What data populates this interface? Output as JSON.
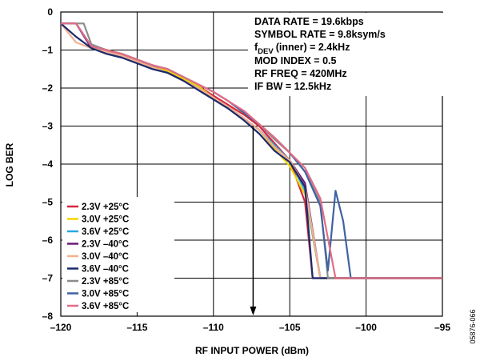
{
  "chart_data": {
    "type": "line",
    "title": "",
    "xlabel": "RF INPUT POWER (dBm)",
    "ylabel": "LOG BER",
    "xlim": [
      -120,
      -95
    ],
    "ylim": [
      -8,
      0
    ],
    "xticks": [
      -120,
      -115,
      -110,
      -105,
      -100,
      -95
    ],
    "xtick_labels": [
      "–120",
      "–115",
      "–110",
      "–105",
      "–100",
      "–95"
    ],
    "yticks": [
      0,
      -1,
      -2,
      -3,
      -4,
      -5,
      -6,
      -7,
      -8
    ],
    "ytick_labels": [
      "0",
      "–1",
      "–2",
      "–3",
      "–4",
      "–5",
      "–6",
      "–7",
      "–8"
    ],
    "grid": true,
    "legend_position": "bottom-left",
    "annotations": {
      "lines": [
        "DATA RATE = 19.6kbps",
        "SYMBOL RATE = 9.8ksym/s",
        "(inner) = 2.4kHz",
        "MOD INDEX = 0.5",
        "RF FREQ = 420MHz",
        "IF BW = 12.5kHz"
      ],
      "fdev_symbol": "f",
      "fdev_subscript": "DEV",
      "arrow_x": -107.4,
      "arrow_from_y": -3,
      "arrow_to_y": -8
    },
    "figure_id": "05876-066",
    "series": [
      {
        "name": "2.3V +25°C",
        "color": "#d7263d",
        "x": [
          -120,
          -119,
          -118,
          -117,
          -116,
          -115,
          -114,
          -113,
          -112,
          -111,
          -110,
          -109,
          -108,
          -107,
          -106,
          -105,
          -104,
          -103.5,
          -95
        ],
        "y": [
          -0.3,
          -0.3,
          -0.9,
          -1.0,
          -1.1,
          -1.25,
          -1.4,
          -1.55,
          -1.75,
          -1.95,
          -2.2,
          -2.45,
          -2.7,
          -3.0,
          -3.45,
          -3.9,
          -5.0,
          -7.0,
          -7.0
        ]
      },
      {
        "name": "3.0V +25°C",
        "color": "#f2d500",
        "x": [
          -120,
          -119,
          -118,
          -117,
          -116,
          -115,
          -114,
          -113,
          -112,
          -111,
          -110,
          -109,
          -108,
          -107,
          -106,
          -105,
          -104,
          -103,
          -95
        ],
        "y": [
          -0.3,
          -0.3,
          -0.9,
          -1.0,
          -1.1,
          -1.25,
          -1.4,
          -1.55,
          -1.75,
          -1.95,
          -2.25,
          -2.5,
          -2.8,
          -3.1,
          -3.6,
          -4.05,
          -4.8,
          -7.0,
          -7.0
        ]
      },
      {
        "name": "3.6V +25°C",
        "color": "#29a8e0",
        "x": [
          -120,
          -119,
          -118,
          -117,
          -116,
          -115,
          -114,
          -113,
          -112,
          -111,
          -110,
          -109,
          -108,
          -107,
          -106,
          -105,
          -104,
          -103,
          -95
        ],
        "y": [
          -0.3,
          -0.3,
          -0.95,
          -1.05,
          -1.15,
          -1.3,
          -1.45,
          -1.6,
          -1.8,
          -2.0,
          -2.25,
          -2.5,
          -2.8,
          -3.1,
          -3.5,
          -3.9,
          -4.7,
          -7.0,
          -7.0
        ]
      },
      {
        "name": "2.3V –40°C",
        "color": "#6a1b7a",
        "x": [
          -120,
          -119,
          -118,
          -117,
          -116,
          -115,
          -114,
          -113,
          -112,
          -111,
          -110,
          -109,
          -108,
          -107,
          -106,
          -105,
          -104,
          -103,
          -95
        ],
        "y": [
          -0.3,
          -0.3,
          -0.95,
          -1.05,
          -1.15,
          -1.3,
          -1.45,
          -1.6,
          -1.8,
          -2.0,
          -2.25,
          -2.5,
          -2.8,
          -3.1,
          -3.55,
          -3.9,
          -4.5,
          -7.0,
          -7.0
        ]
      },
      {
        "name": "3.0V –40°C",
        "color": "#f4b18e",
        "x": [
          -120,
          -119,
          -118,
          -117,
          -116,
          -115,
          -114,
          -113,
          -112,
          -111,
          -110,
          -109,
          -108,
          -107,
          -106,
          -105,
          -104,
          -103,
          -95
        ],
        "y": [
          -0.3,
          -0.8,
          -0.95,
          -1.05,
          -1.15,
          -1.3,
          -1.45,
          -1.6,
          -1.8,
          -2.0,
          -2.25,
          -2.5,
          -2.8,
          -3.1,
          -3.55,
          -3.9,
          -4.6,
          -7.0,
          -7.0
        ]
      },
      {
        "name": "3.6V –40°C",
        "color": "#1b2a6b",
        "x": [
          -120,
          -119,
          -118,
          -117,
          -116,
          -115,
          -114,
          -113,
          -112,
          -111,
          -110,
          -109,
          -108,
          -107,
          -106,
          -105,
          -104,
          -103.5,
          -95
        ],
        "y": [
          -0.3,
          -0.65,
          -0.95,
          -1.1,
          -1.2,
          -1.35,
          -1.5,
          -1.6,
          -1.8,
          -2.05,
          -2.3,
          -2.55,
          -2.85,
          -3.2,
          -3.65,
          -3.95,
          -4.6,
          -7.0,
          -7.0
        ]
      },
      {
        "name": "2.3V +85°C",
        "color": "#8c8c8c",
        "x": [
          -120,
          -119,
          -118.5,
          -118,
          -117,
          -116,
          -115,
          -114,
          -113,
          -112,
          -111,
          -110,
          -109,
          -108,
          -107,
          -106,
          -105,
          -104,
          -103,
          -102.5,
          -95
        ],
        "y": [
          -0.3,
          -0.3,
          -0.3,
          -0.85,
          -1.0,
          -1.1,
          -1.25,
          -1.4,
          -1.5,
          -1.7,
          -1.9,
          -2.1,
          -2.35,
          -2.65,
          -2.95,
          -3.35,
          -3.7,
          -4.2,
          -5.0,
          -7.0,
          -7.0
        ]
      },
      {
        "name": "3.0V +85°C",
        "color": "#3f63a1",
        "x": [
          -120,
          -119,
          -118,
          -117,
          -116,
          -115,
          -114,
          -113,
          -112,
          -111,
          -110,
          -109,
          -108,
          -107,
          -106,
          -105,
          -104,
          -103,
          -102.5,
          -102,
          -101.5,
          -101,
          -95
        ],
        "y": [
          -0.3,
          -0.3,
          -0.9,
          -1.0,
          -1.1,
          -1.25,
          -1.4,
          -1.5,
          -1.7,
          -1.9,
          -2.1,
          -2.35,
          -2.65,
          -2.95,
          -3.3,
          -3.7,
          -4.2,
          -5.1,
          -6.8,
          -4.7,
          -5.5,
          -7.0,
          -7.0
        ]
      },
      {
        "name": "3.6V +85°C",
        "color": "#e26d86",
        "x": [
          -120,
          -119,
          -118,
          -117,
          -116,
          -115,
          -114,
          -113,
          -112,
          -111,
          -110,
          -109,
          -108,
          -107,
          -106,
          -105,
          -104,
          -103,
          -102,
          -95
        ],
        "y": [
          -0.3,
          -0.3,
          -0.9,
          -1.0,
          -1.1,
          -1.25,
          -1.4,
          -1.5,
          -1.7,
          -1.9,
          -2.1,
          -2.35,
          -2.6,
          -2.95,
          -3.3,
          -3.7,
          -4.1,
          -4.9,
          -7.0,
          -7.0
        ]
      }
    ]
  }
}
